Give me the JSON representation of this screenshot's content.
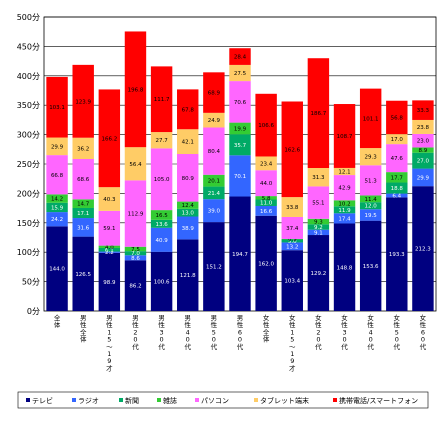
{
  "chart_data": {
    "type": "bar",
    "stacked": true,
    "ylim": [
      0,
      500
    ],
    "y_ticks": [
      "0分",
      "50分",
      "100分",
      "150分",
      "200分",
      "250分",
      "300分",
      "350分",
      "400分",
      "450分",
      "500分"
    ],
    "y_tick_values": [
      0,
      50,
      100,
      150,
      200,
      250,
      300,
      350,
      400,
      450,
      500
    ],
    "grid": "horizontal",
    "legend_position": "bottom",
    "categories": [
      "全体",
      "男性全体",
      "男性15〜19才",
      "男性20代",
      "男性30代",
      "男性40代",
      "男性50代",
      "男性60代",
      "女性全体",
      "女性15〜19才",
      "女性20代",
      "女性30代",
      "女性40代",
      "女性50代",
      "女性60代"
    ],
    "series": [
      {
        "name": "テレビ",
        "color": "#000080",
        "values": [
          144.0,
          126.5,
          98.9,
          86.2,
          100.6,
          121.8,
          151.2,
          194.7,
          162.0,
          103.4,
          129.2,
          148.8,
          153.6,
          193.3,
          212.3
        ]
      },
      {
        "name": "ラジオ",
        "color": "#3366ff",
        "values": [
          24.2,
          31.6,
          2.2,
          8.6,
          40.9,
          38.9,
          39.0,
          70.1,
          16.6,
          13.2,
          9.1,
          17.4,
          19.5,
          6.4,
          29.9
        ]
      },
      {
        "name": "新聞",
        "color": "#00aa66",
        "values": [
          15.9,
          17.1,
          6.1,
          7.0,
          13.6,
          13.0,
          21.4,
          35.7,
          11.0,
          5.0,
          9.2,
          11.9,
          12.0,
          18.8,
          27.0
        ]
      },
      {
        "name": "雑誌",
        "color": "#33cc33",
        "values": [
          14.2,
          14.7,
          4.0,
          7.5,
          16.5,
          12.4,
          20.1,
          19.9,
          5.8,
          0.9,
          9.3,
          10.2,
          11.4,
          17.7,
          8.9
        ]
      },
      {
        "name": "パソコン",
        "color": "#ff66ff",
        "values": [
          66.8,
          68.6,
          59.1,
          112.9,
          105.0,
          80.9,
          80.4,
          70.6,
          44.0,
          37.4,
          55.1,
          42.9,
          51.3,
          47.6,
          23.0
        ]
      },
      {
        "name": "タブレット端末",
        "color": "#ffcc66",
        "values": [
          29.9,
          36.2,
          40.3,
          56.4,
          27.7,
          42.1,
          24.9,
          27.5,
          23.4,
          33.8,
          31.3,
          12.1,
          29.3,
          17.0,
          23.8
        ]
      },
      {
        "name": "携帯電話/スマートフォン",
        "color": "#ff0000",
        "values": [
          103.1,
          123.9,
          166.2,
          196.8,
          111.7,
          67.8,
          68.9,
          28.4,
          106.6,
          162.6,
          186.7,
          108.7,
          101.1,
          56.8,
          33.3
        ]
      }
    ],
    "segment_labels": [
      [
        "144.0",
        "24.2",
        "15.9",
        "14.2",
        "66.8",
        "29.9",
        "103.1"
      ],
      [
        "126.5",
        "31.6",
        "17.1",
        "14.7",
        "68.6",
        "36.2",
        "123.9"
      ],
      [
        "98.9",
        "2.2",
        "6.1",
        "4.0",
        "59.1",
        "40.3",
        "166.2"
      ],
      [
        "86.2",
        "8.6",
        "7.0",
        "7.5",
        "112.9",
        "56.4",
        "196.8"
      ],
      [
        "100.6",
        "40.9",
        "13.6",
        "16.5",
        "105.0",
        "27.7",
        "111.7"
      ],
      [
        "121.8",
        "38.9",
        "13.0",
        "12.4",
        "80.9",
        "42.1",
        "67.8"
      ],
      [
        "151.2",
        "39.0",
        "21.4",
        "20.1",
        "80.4",
        "24.9",
        "68.9"
      ],
      [
        "194.7",
        "70.1",
        "35.7",
        "19.9",
        "70.6",
        "27.5",
        "28.4"
      ],
      [
        "162.0",
        "16.6",
        "11.0",
        "5.8",
        "44.0",
        "23.4",
        "106.6"
      ],
      [
        "103.4",
        "13.2",
        "5.0",
        "0.9",
        "37.4",
        "33.8",
        "162.6"
      ],
      [
        "129.2",
        "9.1",
        "9.2",
        "9.3",
        "55.1",
        "31.3",
        "186.7"
      ],
      [
        "148.8",
        "17.4",
        "11.9",
        "10.2",
        "42.9",
        "12.1",
        "108.7"
      ],
      [
        "153.6",
        "19.5",
        "12.0",
        "11.4",
        "51.3",
        "29.3",
        "101.1"
      ],
      [
        "193.3",
        "6.4",
        "18.8",
        "17.7",
        "47.6",
        "17.0",
        "56.8"
      ],
      [
        "212.3",
        "29.9",
        "27.0",
        "8.9",
        "23.0",
        "23.8",
        "33.3"
      ]
    ],
    "label_colors": [
      "#ffffff",
      "#ffffff",
      "#ffffff",
      "#000000",
      "#000000",
      "#000000",
      "#000000"
    ]
  }
}
